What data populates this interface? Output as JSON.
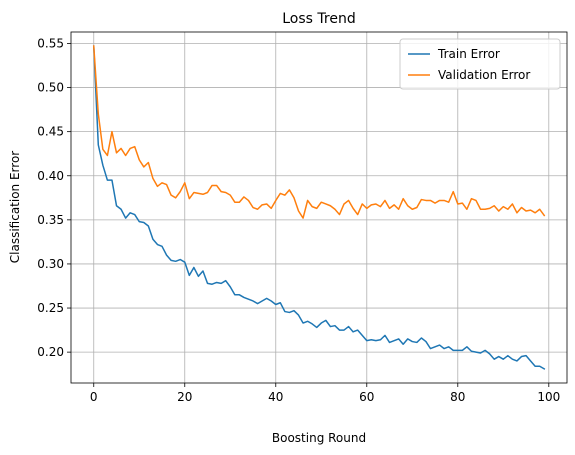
{
  "chart_data": {
    "type": "line",
    "title": "Loss Trend",
    "xlabel": "Boosting Round",
    "ylabel": "Classification Error",
    "xlim": [
      -5,
      104
    ],
    "ylim": [
      0.165,
      0.563
    ],
    "xticks": [
      0,
      20,
      40,
      60,
      80,
      100
    ],
    "yticks": [
      0.2,
      0.25,
      0.3,
      0.35,
      0.4,
      0.45,
      0.5,
      0.55
    ],
    "grid": true,
    "legend_position": "top-right",
    "x": [
      0,
      1,
      2,
      3,
      4,
      5,
      6,
      7,
      8,
      9,
      10,
      11,
      12,
      13,
      14,
      15,
      16,
      17,
      18,
      19,
      20,
      21,
      22,
      23,
      24,
      25,
      26,
      27,
      28,
      29,
      30,
      31,
      32,
      33,
      34,
      35,
      36,
      37,
      38,
      39,
      40,
      41,
      42,
      43,
      44,
      45,
      46,
      47,
      48,
      49,
      50,
      51,
      52,
      53,
      54,
      55,
      56,
      57,
      58,
      59,
      60,
      61,
      62,
      63,
      64,
      65,
      66,
      67,
      68,
      69,
      70,
      71,
      72,
      73,
      74,
      75,
      76,
      77,
      78,
      79,
      80,
      81,
      82,
      83,
      84,
      85,
      86,
      87,
      88,
      89,
      90,
      91,
      92,
      93,
      94,
      95,
      96,
      97,
      98,
      99
    ],
    "series": [
      {
        "name": "Train Error",
        "color": "#1f77b4",
        "values": [
          0.547,
          0.435,
          0.412,
          0.395,
          0.395,
          0.366,
          0.362,
          0.352,
          0.358,
          0.356,
          0.348,
          0.347,
          0.343,
          0.328,
          0.322,
          0.32,
          0.31,
          0.304,
          0.303,
          0.305,
          0.302,
          0.287,
          0.296,
          0.286,
          0.292,
          0.278,
          0.277,
          0.279,
          0.278,
          0.281,
          0.274,
          0.265,
          0.265,
          0.262,
          0.26,
          0.258,
          0.255,
          0.258,
          0.261,
          0.258,
          0.254,
          0.256,
          0.246,
          0.245,
          0.247,
          0.242,
          0.233,
          0.235,
          0.232,
          0.228,
          0.233,
          0.236,
          0.229,
          0.23,
          0.225,
          0.225,
          0.229,
          0.223,
          0.225,
          0.219,
          0.213,
          0.214,
          0.213,
          0.214,
          0.219,
          0.211,
          0.213,
          0.215,
          0.209,
          0.215,
          0.212,
          0.211,
          0.216,
          0.212,
          0.204,
          0.206,
          0.208,
          0.204,
          0.206,
          0.202,
          0.202,
          0.202,
          0.206,
          0.201,
          0.2,
          0.199,
          0.202,
          0.198,
          0.192,
          0.195,
          0.192,
          0.196,
          0.192,
          0.19,
          0.195,
          0.196,
          0.19,
          0.184,
          0.184,
          0.181
        ]
      },
      {
        "name": "Validation Error",
        "color": "#ff7f0e",
        "values": [
          0.547,
          0.47,
          0.43,
          0.423,
          0.45,
          0.426,
          0.431,
          0.423,
          0.431,
          0.433,
          0.418,
          0.41,
          0.415,
          0.397,
          0.388,
          0.392,
          0.39,
          0.378,
          0.375,
          0.382,
          0.392,
          0.374,
          0.381,
          0.38,
          0.379,
          0.381,
          0.389,
          0.389,
          0.382,
          0.381,
          0.378,
          0.37,
          0.37,
          0.376,
          0.372,
          0.364,
          0.362,
          0.367,
          0.368,
          0.363,
          0.372,
          0.38,
          0.378,
          0.384,
          0.375,
          0.36,
          0.352,
          0.372,
          0.365,
          0.363,
          0.37,
          0.368,
          0.366,
          0.362,
          0.356,
          0.368,
          0.372,
          0.363,
          0.356,
          0.368,
          0.363,
          0.367,
          0.368,
          0.365,
          0.372,
          0.363,
          0.367,
          0.362,
          0.374,
          0.366,
          0.362,
          0.364,
          0.373,
          0.372,
          0.372,
          0.369,
          0.372,
          0.372,
          0.37,
          0.382,
          0.368,
          0.369,
          0.362,
          0.374,
          0.372,
          0.362,
          0.362,
          0.363,
          0.366,
          0.36,
          0.365,
          0.362,
          0.368,
          0.358,
          0.364,
          0.36,
          0.361,
          0.358,
          0.362,
          0.355
        ]
      }
    ]
  }
}
